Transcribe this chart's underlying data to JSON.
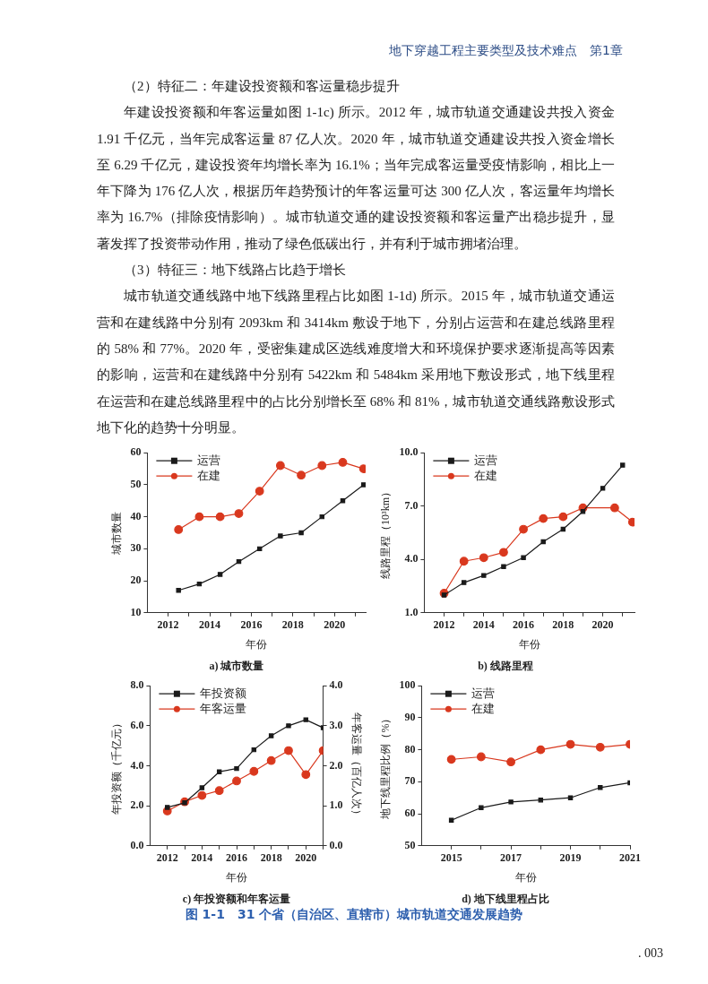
{
  "chart_data": [
    {
      "type": "other",
      "title": "地下穿越工程主要类型及技术难点　第1章",
      "annotations": [
        "（2）特征二：年建设投资额和客运量稳步提升",
        "年建设投资额和年客运量如图 1-1c) 所示。2012 年，城市轨道交通建设共投入资金 1.91 千亿元，当年完成客运量 87 亿人次。2020 年，城市轨道交通建设共投入资金增长至 6.29 千亿元，建设投资年均增长率为 16.1%；当年完成客运量受疫情影响，相比上一年下降为 176 亿人次，根据历年趋势预计的年客运量可达 300 亿人次，客运量年均增长率为 16.7%（排除疫情影响）。城市轨道交通的建设投资额和客运量产出稳步提升，显著发挥了投资带动作用，推动了绿色低碳出行，并有利于城市拥堵治理。",
        "（3）特征三：地下线路占比趋于增长",
        "城市轨道交通线路中地下线路里程占比如图 1-1d) 所示。2015 年，城市轨道交通运营和在建线路中分别有 2093km 和 3414km 敷设于地下，分别占运营和在建总线路里程的 58% 和 77%。2020 年，受密集建成区选线难度增大和环境保护要求逐渐提高等因素的影响，运营和在建线路中分别有 5422km 和 5484km 采用地下敷设形式，地下线里程在运营和在建总线路里程中的占比分别增长至 68% 和 81%，城市轨道交通线路敷设形式地下化的趋势十分明显。"
      ]
    },
    {
      "type": "line",
      "title": "a) 城市数量",
      "xlabel": "年份",
      "ylabel": "城市数量",
      "legend": "top left",
      "x": [
        2012.5,
        2013.5,
        2014.5,
        2015.4,
        2016.4,
        2017.4,
        2018.4,
        2019.4,
        2020.4,
        2021.4
      ],
      "series": [
        {
          "name": "运营",
          "color": "#1a1a1a",
          "marker": "square",
          "values": [
            17,
            19,
            22,
            26,
            30,
            34,
            35,
            40,
            45,
            50
          ]
        },
        {
          "name": "在建",
          "color": "#d9381e",
          "marker": "circle",
          "values": [
            36,
            40,
            40,
            41,
            48,
            56,
            53,
            56,
            57,
            55
          ]
        }
      ],
      "xlim": [
        2011,
        2021.5
      ],
      "xticks": [
        2012,
        {
          "value": 2013,
          "label": null
        },
        2014,
        {
          "value": 2015,
          "label": null
        },
        2016,
        {
          "value": 2017,
          "label": null
        },
        2018,
        {
          "value": 2019,
          "label": null
        },
        2020,
        {
          "value": 2021,
          "label": null
        }
      ],
      "ylim": [
        10,
        60
      ],
      "yticks": [
        10,
        20,
        30,
        40,
        50,
        60
      ]
    },
    {
      "type": "line",
      "title": "b) 线路里程",
      "xlabel": "年份",
      "ylabel": "线路里程（10³km）",
      "legend": "top left",
      "x": [
        2012,
        2013,
        2014,
        2015,
        2016,
        2017,
        2018,
        2019,
        2020,
        2021
      ],
      "series": [
        {
          "name": "运营",
          "color": "#1a1a1a",
          "marker": "square",
          "values": [
            2.0,
            2.7,
            3.1,
            3.6,
            4.1,
            5.0,
            5.7,
            6.7,
            8.0,
            9.3
          ]
        },
        {
          "name": "在建",
          "color": "#d9381e",
          "marker": "circle",
          "x": [
            2012,
            2013,
            2014,
            2015,
            2016,
            2017,
            2018,
            2019,
            2020.6,
            2021.5
          ],
          "values": [
            2.1,
            3.9,
            4.1,
            4.4,
            5.7,
            6.3,
            6.4,
            6.9,
            6.9,
            6.1
          ]
        }
      ],
      "xlim": [
        2011,
        2021.6
      ],
      "xticks": [
        2012,
        {
          "value": 2013,
          "label": null
        },
        2014,
        {
          "value": 2015,
          "label": null
        },
        2016,
        {
          "value": 2017,
          "label": null
        },
        2018,
        {
          "value": 2019,
          "label": null
        },
        2020,
        {
          "value": 2021,
          "label": null
        }
      ],
      "ylim": [
        1,
        10
      ],
      "yticks": [
        {
          "value": 1,
          "label": "1.0"
        },
        {
          "value": 4,
          "label": "4.0"
        },
        {
          "value": 7,
          "label": "7.0"
        },
        {
          "value": 10,
          "label": "10.0"
        }
      ]
    },
    {
      "type": "line",
      "title": "c) 年投资额和年客运量",
      "xlabel": "年份",
      "ylabel": "年投资额（千亿元）",
      "y2label": "年客运量（百亿人次）",
      "legend": "top left",
      "x": [
        2012,
        2013,
        2014,
        2015,
        2016,
        2017,
        2018,
        2019,
        2020,
        2021
      ],
      "series": [
        {
          "name": "年投资额",
          "color": "#1a1a1a",
          "marker": "square",
          "values": [
            1.92,
            2.15,
            2.9,
            3.7,
            3.86,
            4.8,
            5.5,
            6.0,
            6.3,
            5.9
          ]
        },
        {
          "name": "年客运量",
          "color": "#d9381e",
          "marker": "circle",
          "axis": "y2",
          "values": [
            0.87,
            1.1,
            1.26,
            1.38,
            1.62,
            1.86,
            2.13,
            2.38,
            1.78,
            2.38
          ]
        }
      ],
      "xlim": [
        2011,
        2021
      ],
      "xticks": [
        2012,
        {
          "value": 2013,
          "label": null
        },
        2014,
        {
          "value": 2015,
          "label": null
        },
        2016,
        {
          "value": 2017,
          "label": null
        },
        2018,
        {
          "value": 2019,
          "label": null
        },
        2020,
        {
          "value": 2021,
          "label": null
        }
      ],
      "ylim": [
        0,
        8
      ],
      "yticks": [
        {
          "value": 0,
          "label": "0.0"
        },
        {
          "value": 2,
          "label": "2.0"
        },
        {
          "value": 4,
          "label": "4.0"
        },
        {
          "value": 6,
          "label": "6.0"
        },
        {
          "value": 8,
          "label": "8.0"
        }
      ],
      "y2lim": [
        0,
        4
      ],
      "y2ticks": [
        {
          "value": 0,
          "label": "0.0"
        },
        {
          "value": 1,
          "label": "1.0"
        },
        {
          "value": 2,
          "label": "2.0"
        },
        {
          "value": 3,
          "label": "3.0"
        },
        {
          "value": 4,
          "label": "4.0"
        }
      ]
    },
    {
      "type": "line",
      "title": "d) 地下线里程占比",
      "xlabel": "年份",
      "ylabel": "地下线里程比例（%）",
      "legend": "top left",
      "x": [
        2015,
        2016,
        2017,
        2018,
        2019,
        2020,
        2021
      ],
      "series": [
        {
          "name": "运营",
          "color": "#1a1a1a",
          "marker": "square",
          "values": [
            58.0,
            61.9,
            63.7,
            64.3,
            65.0,
            68.2,
            69.7
          ]
        },
        {
          "name": "在建",
          "color": "#d9381e",
          "marker": "circle",
          "values": [
            77.0,
            77.8,
            76.2,
            80.0,
            81.7,
            80.8,
            81.7
          ]
        }
      ],
      "xlim": [
        2014,
        2021
      ],
      "xticks": [
        2015,
        {
          "value": 2016,
          "label": null
        },
        2017,
        {
          "value": 2018,
          "label": null
        },
        2019,
        {
          "value": 2020,
          "label": null
        },
        2021
      ],
      "ylim": [
        50,
        100
      ],
      "yticks": [
        50,
        60,
        70,
        80,
        90,
        100
      ]
    },
    {
      "type": "other",
      "title": "图 1-1　31 个省（自治区、直辖市）城市轨道交通发展趋势",
      "annotations": [
        ". 003"
      ]
    }
  ]
}
